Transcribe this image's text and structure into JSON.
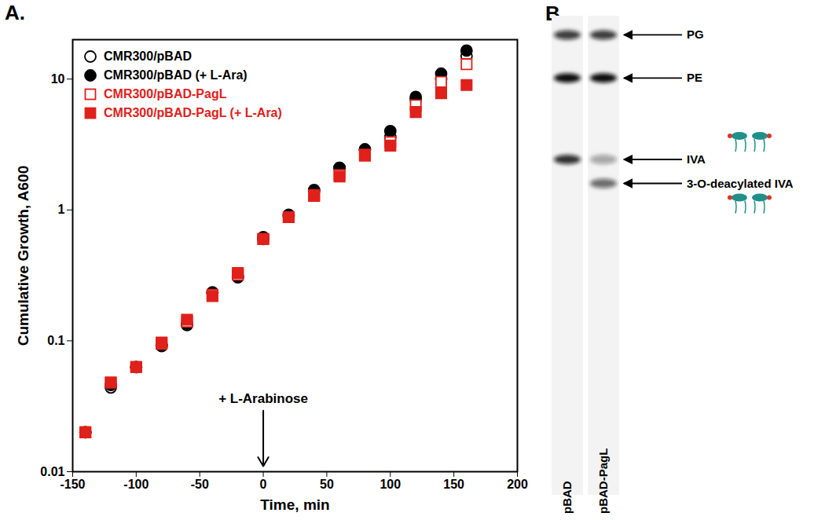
{
  "chart_data": [
    {
      "panel": "A.",
      "type": "scatter",
      "x_label": "Time, min",
      "y_label": "Cumulative Growth, A600",
      "log": "y",
      "legend": "top-left",
      "xlim": [
        -150,
        200
      ],
      "xticks": [
        -150,
        -100,
        -50,
        0,
        50,
        100,
        150,
        200
      ],
      "ylim": [
        0.01,
        20
      ],
      "yticks": [
        0.01,
        0.1,
        1,
        10
      ],
      "x": [
        -140,
        -120,
        -100,
        -80,
        -60,
        -40,
        -20,
        0,
        20,
        40,
        60,
        80,
        100,
        120,
        140,
        160
      ],
      "series": [
        {
          "name": "CMR300/pBAD",
          "color": "#000000",
          "marker": "circle-open",
          "values": [
            0.02,
            0.044,
            0.063,
            0.091,
            0.132,
            0.232,
            0.305,
            0.6,
            0.9,
            1.4,
            2.1,
            2.9,
            3.6,
            7.0,
            10,
            15
          ]
        },
        {
          "name": "CMR300/pBAD (+ L-Ara)",
          "color": "#000000",
          "marker": "circle",
          "values": [
            0.02,
            0.046,
            0.063,
            0.093,
            0.135,
            0.235,
            0.31,
            0.62,
            0.92,
            1.42,
            2.1,
            2.9,
            4.0,
            7.3,
            11,
            16.5
          ]
        },
        {
          "name": "CMR300/pBAD-PagL",
          "color": "#e0201b",
          "marker": "square-open",
          "values": [
            0.02,
            0.048,
            0.063,
            0.095,
            0.14,
            0.225,
            0.32,
            0.6,
            0.88,
            1.3,
            1.85,
            2.65,
            3.3,
            6.3,
            9.5,
            13
          ]
        },
        {
          "name": "CMR300/pBAD-PagL (+ L-Ara)",
          "color": "#e0201b",
          "marker": "square",
          "values": [
            0.02,
            0.048,
            0.063,
            0.097,
            0.145,
            0.22,
            0.33,
            0.6,
            0.88,
            1.28,
            1.8,
            2.6,
            3.1,
            5.6,
            7.8,
            9
          ]
        }
      ],
      "annotations": [
        {
          "text": "+ L-Arabinose",
          "x": 0,
          "y": 0.035,
          "arrow_end": 0.011
        }
      ]
    },
    {
      "panel": "B.",
      "type": "tlc",
      "lanes": [
        "pBAD",
        "pBAD-PagL"
      ],
      "bands": [
        {
          "label": "PG",
          "rf": 0.96,
          "intensity": [
            0.8,
            0.8
          ]
        },
        {
          "label": "PE",
          "rf": 0.87,
          "intensity": [
            1,
            1
          ]
        },
        {
          "label": "IVA",
          "rf": 0.7,
          "intensity": [
            0.85,
            0.35
          ]
        },
        {
          "label": "3-O-deacylated IVA",
          "rf": 0.65,
          "intensity": [
            0,
            0.6
          ]
        }
      ]
    }
  ]
}
